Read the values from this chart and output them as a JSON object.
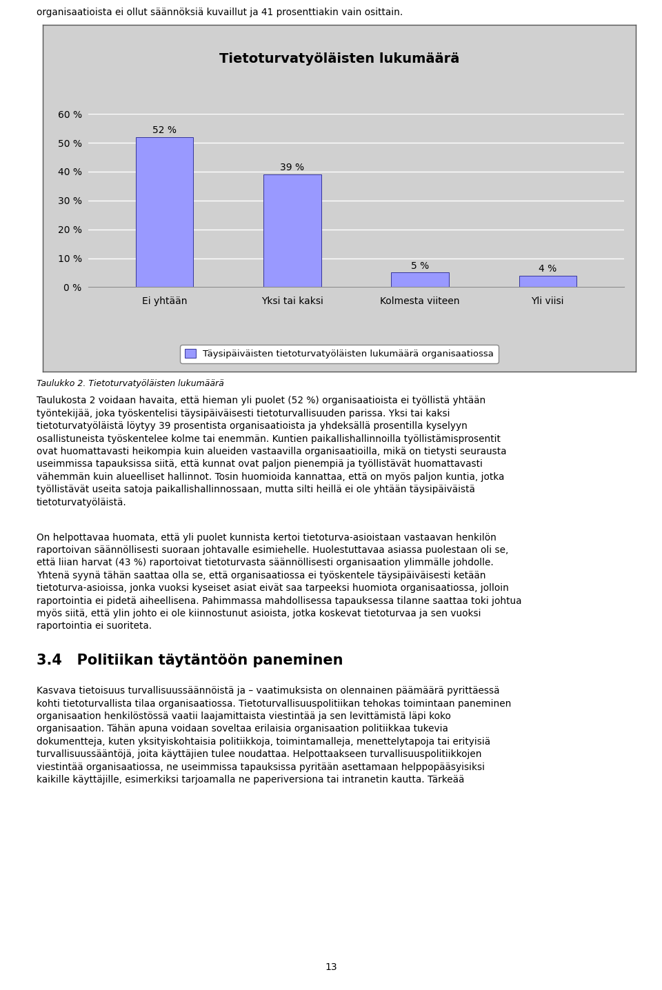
{
  "title": "Tietoturvatyöläisten lukumäärä",
  "categories": [
    "Ei yhtään",
    "Yksi tai kaksi",
    "Kolmesta viiteen",
    "Yli viisi"
  ],
  "values": [
    52,
    39,
    5,
    4
  ],
  "bar_color": "#9999ff",
  "bar_edge_color": "#333399",
  "plot_bg_color": "#d0d0d0",
  "ylim": [
    0,
    60
  ],
  "yticks": [
    0,
    10,
    20,
    30,
    40,
    50,
    60
  ],
  "ytick_labels": [
    "0 %",
    "10 %",
    "20 %",
    "30 %",
    "40 %",
    "50 %",
    "60 %"
  ],
  "title_fontsize": 14,
  "tick_fontsize": 10,
  "value_label_fontsize": 10,
  "value_labels": [
    "52 %",
    "39 %",
    "5 %",
    "4 %"
  ],
  "legend_label": "Täysipäiväisten tietoturvatyöläisten lukumäärä organisaatiossa",
  "caption": "Taulukko 2. Tietoturvatyöläisten lukumäärä",
  "top_text": "organisaatioista ei ollut säännöksiä kuvaillut ja 41 prosenttiakin vain osittain.",
  "page_number": "13",
  "body_para1": "Taulukosta 2 voidaan havaita, että hieman yli puolet (52 %) organisaatioista ei työllistä yhtään\ntyöntekijää, joka työskentelisi täysipäiväisesti tietoturvallisuuden parissa. Yksi tai kaksi\ntietoturvatyöläistä löytyy 39 prosentista organisaatioista ja yhdeksällä prosentilla kyselyyn\nosallistuneista työskentelee kolme tai enemmän. Kuntien paikallishallinnoilla työllistämisprosentit\novat huomattavasti heikompia kuin alueiden vastaavilla organisaatioilla, mikä on tietysti seurausta\nuseimmissa tapauksissa siitä, että kunnat ovat paljon pienempiä ja työllistävät huomattavasti\nvähemmän kuin alueelliset hallinnot. Tosin huomioida kannattaa, että on myös paljon kuntia, jotka\ntyöllistävät useita satoja paikallishallinnossaan, mutta silti heillä ei ole yhtään täysipäiväistä\ntietoturvatyöläistä.",
  "body_para2": "On helpottavaa huomata, että yli puolet kunnista kertoi tietoturva-asioistaan vastaavan henkilön\nraportoivan säännöllisesti suoraan johtavalle esimiehelle. Huolestuttavaa asiassa puolestaan oli se,\nettä liian harvat (43 %) raportoivat tietoturvasta säännöllisesti organisaation ylimmälle johdolle.\nYhtenä syynä tähän saattaa olla se, että organisaatiossa ei työskentele täysipäiväisesti ketään\ntietoturva-asioissa, jonka vuoksi kyseiset asiat eivät saa tarpeeksi huomiota organisaatiossa, jolloin\nraportointia ei pidetä aiheellisena. Pahimmassa mahdollisessa tapauksessa tilanne saattaa toki johtua\nmyös siitä, että ylin johto ei ole kiinnostunut asioista, jotka koskevat tietoturvaa ja sen vuoksi\nraportointia ei suoriteta.",
  "section_title": "3.4   Politiikan täytäntöön paneminen",
  "body_para3": "Kasvava tietoisuus turvallisuussäännöistä ja – vaatimuksista on olennainen päämäärä pyrittäessä\nkohti tietoturvallista tilaa organisaatiossa. Tietoturvallisuuspolitiikan tehokas toimintaan paneminen\norganisaation henkilöstössä vaatii laajamittaista viestintää ja sen levittämistä läpi koko\norganisaation. Tähän apuna voidaan soveltaa erilaisia organisaation politiikkaa tukevia\ndokumentteja, kuten yksityiskohtaisia politiikkoja, toimintamalleja, menettelytapoja tai erityisiä\nturvallisuussääntöjä, joita käyttäjien tulee noudattaa. Helpottaakseen turvallisuuspolitiikkojen\nviestintää organisaatiossa, ne useimmissa tapauksissa pyritään asettamaan helppopääsyisiksi\nkaikille käyttäjille, esimerkiksi tarjoamalla ne paperiversiona tai intranetin kautta. Tärkeää"
}
